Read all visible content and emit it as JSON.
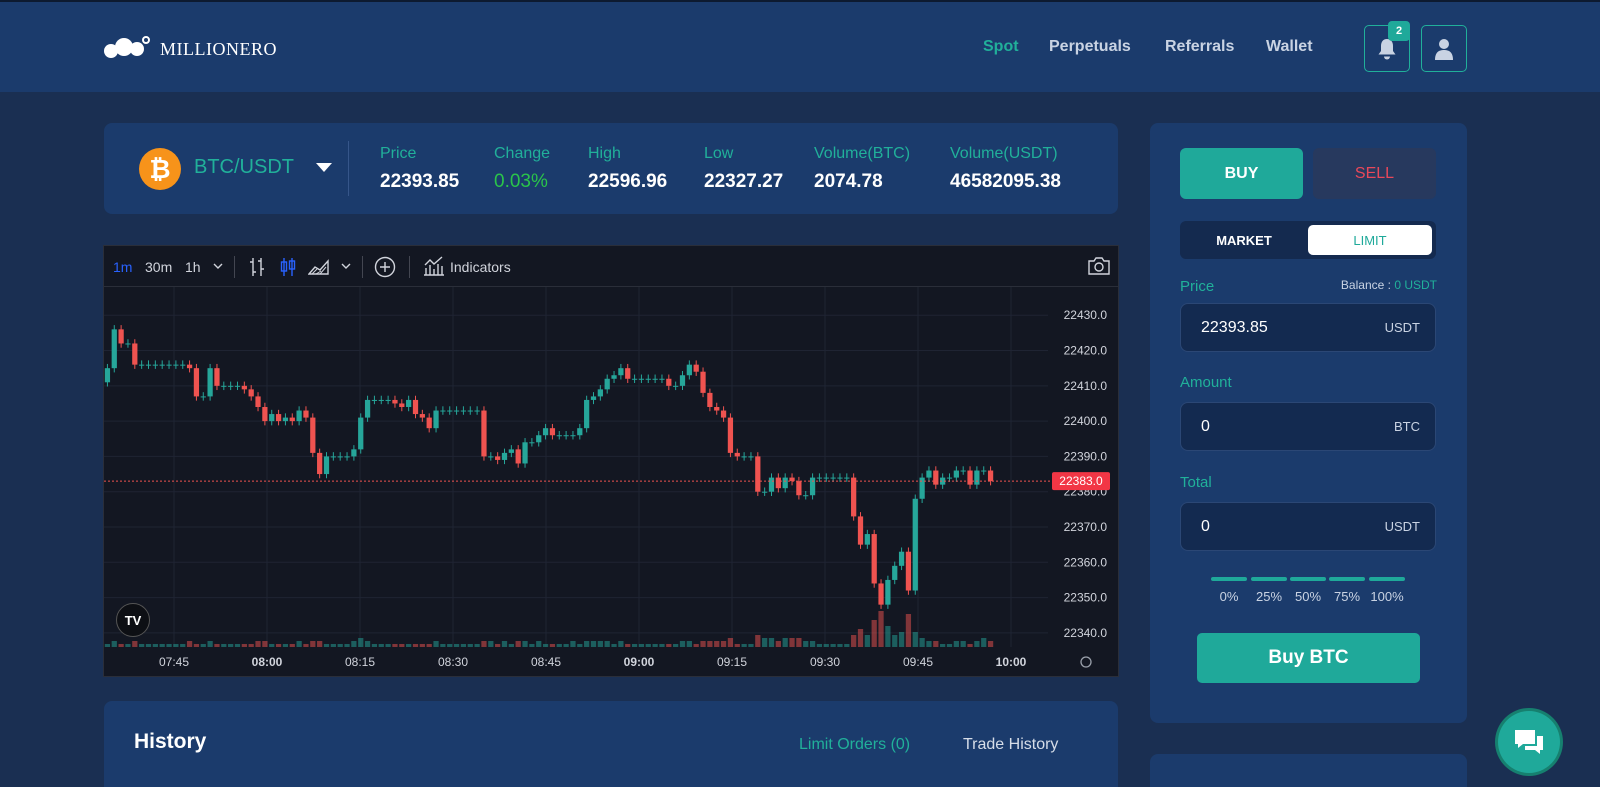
{
  "header": {
    "brand": "MILLIONERO",
    "nav": [
      {
        "label": "Spot",
        "active": true
      },
      {
        "label": "Perpetuals",
        "active": false
      },
      {
        "label": "Referrals",
        "active": false
      },
      {
        "label": "Wallet",
        "active": false
      }
    ],
    "notification_count": "2",
    "icons": [
      "bell-icon",
      "user-icon"
    ]
  },
  "ticker": {
    "pair": "BTC/USDT",
    "coin_icon": "bitcoin-icon",
    "stats": [
      {
        "label": "Price",
        "value": "22393.85"
      },
      {
        "label": "Change",
        "value": "0.03%"
      },
      {
        "label": "High",
        "value": "22596.96"
      },
      {
        "label": "Low",
        "value": "22327.27"
      },
      {
        "label": "Volume(BTC)",
        "value": "2074.78"
      },
      {
        "label": "Volume(USDT)",
        "value": "46582095.38"
      }
    ],
    "positive_color": "#2ac44a"
  },
  "chart_toolbar": {
    "intervals": [
      "1m",
      "30m",
      "1h"
    ],
    "active_interval": "1m",
    "indicators_label": "Indicators",
    "logo_text": "TV"
  },
  "chart_data": {
    "type": "candlestick",
    "yticks": [
      22430.0,
      22420.0,
      22410.0,
      22400.0,
      22390.0,
      22380.0,
      22370.0,
      22360.0,
      22350.0,
      22340.0
    ],
    "ytick_labels": [
      "22430.0",
      "22420.0",
      "22410.0",
      "22400.0",
      "22390.0",
      "22380.0",
      "22370.0",
      "22360.0",
      "22350.0",
      "22340.0"
    ],
    "xticks": [
      "07:45",
      "08:00",
      "08:15",
      "08:30",
      "08:45",
      "09:00",
      "09:15",
      "09:30",
      "09:45",
      "10:00"
    ],
    "bold_xticks": [
      "08:00",
      "09:00",
      "10:00"
    ],
    "ylim": [
      22336,
      22438
    ],
    "last_price": 22383.0,
    "last_price_label": "22383.0",
    "up_color": "#26a69a",
    "down_color": "#ef5350",
    "closes": [
      22415,
      22426,
      22422,
      22422,
      22416,
      22416,
      22416,
      22416,
      22416,
      22416,
      22416,
      22416,
      22415,
      22407,
      22407,
      22415,
      22410,
      22410,
      22410,
      22410,
      22409,
      22407,
      22404,
      22400,
      22402,
      22400,
      22401,
      22400,
      22403,
      22401,
      22391,
      22385,
      22390,
      22390,
      22390,
      22390,
      22392,
      22401,
      22406,
      22406,
      22406,
      22406,
      22405,
      22404,
      22406,
      22402,
      22401,
      22398,
      22403,
      22403,
      22403,
      22403,
      22403,
      22403,
      22403,
      22390,
      22390,
      22389,
      22391,
      22392,
      22388,
      22394,
      22394,
      22396,
      22398,
      22396,
      22396,
      22396,
      22396,
      22398,
      22406,
      22407,
      22409,
      22412,
      22413,
      22415,
      22412,
      22412,
      22412,
      22412,
      22412,
      22412,
      22410,
      22410,
      22413,
      22416,
      22414,
      22408,
      22404,
      22403,
      22401,
      22391,
      22390,
      22390,
      22390,
      22380,
      22380,
      22384,
      22381,
      22384,
      22383,
      22379,
      22379,
      22384,
      22384,
      22384,
      22384,
      22384,
      22384,
      22373,
      22365,
      22368,
      22354,
      22348,
      22355,
      22359,
      22363,
      22352,
      22378,
      22384,
      22386,
      22382,
      22384,
      22384,
      22386,
      22386,
      22382,
      22386,
      22386,
      22383
    ],
    "volumes": [
      1,
      2,
      1,
      1,
      2,
      1,
      1,
      1,
      1,
      1,
      1,
      1,
      2,
      1,
      1,
      2,
      1,
      1,
      1,
      1,
      1,
      1,
      2,
      2,
      1,
      1,
      1,
      1,
      2,
      1,
      2,
      2,
      1,
      1,
      1,
      1,
      2,
      3,
      2,
      1,
      1,
      1,
      1,
      1,
      1,
      1,
      1,
      1,
      2,
      1,
      1,
      1,
      1,
      1,
      1,
      2,
      2,
      1,
      2,
      1,
      2,
      2,
      1,
      2,
      1,
      1,
      1,
      1,
      2,
      1,
      2,
      2,
      2,
      2,
      1,
      2,
      1,
      1,
      1,
      1,
      1,
      1,
      1,
      1,
      2,
      2,
      1,
      2,
      2,
      2,
      2,
      3,
      1,
      1,
      1,
      4,
      3,
      3,
      2,
      3,
      3,
      3,
      2,
      2,
      1,
      1,
      1,
      1,
      1,
      4,
      6,
      4,
      9,
      12,
      7,
      4,
      5,
      11,
      5,
      3,
      2,
      2,
      1,
      1,
      2,
      2,
      1,
      2,
      3,
      2
    ]
  },
  "order_panel": {
    "buy_label": "BUY",
    "sell_label": "SELL",
    "market_label": "MARKET",
    "limit_label": "LIMIT",
    "price_label": "Price",
    "balance_label": "Balance :",
    "balance_value": "0 USDT",
    "price_value": "22393.85",
    "price_unit": "USDT",
    "amount_label": "Amount",
    "amount_value": "0",
    "amount_unit": "BTC",
    "total_label": "Total",
    "total_value": "0",
    "total_unit": "USDT",
    "percents": [
      "0%",
      "25%",
      "50%",
      "75%",
      "100%"
    ],
    "submit_label": "Buy BTC"
  },
  "history": {
    "title": "History",
    "tabs": [
      {
        "label": "Limit Orders (0)",
        "active": true
      },
      {
        "label": "Trade History",
        "active": false
      }
    ]
  },
  "chat": {
    "icon": "chat-icon"
  }
}
